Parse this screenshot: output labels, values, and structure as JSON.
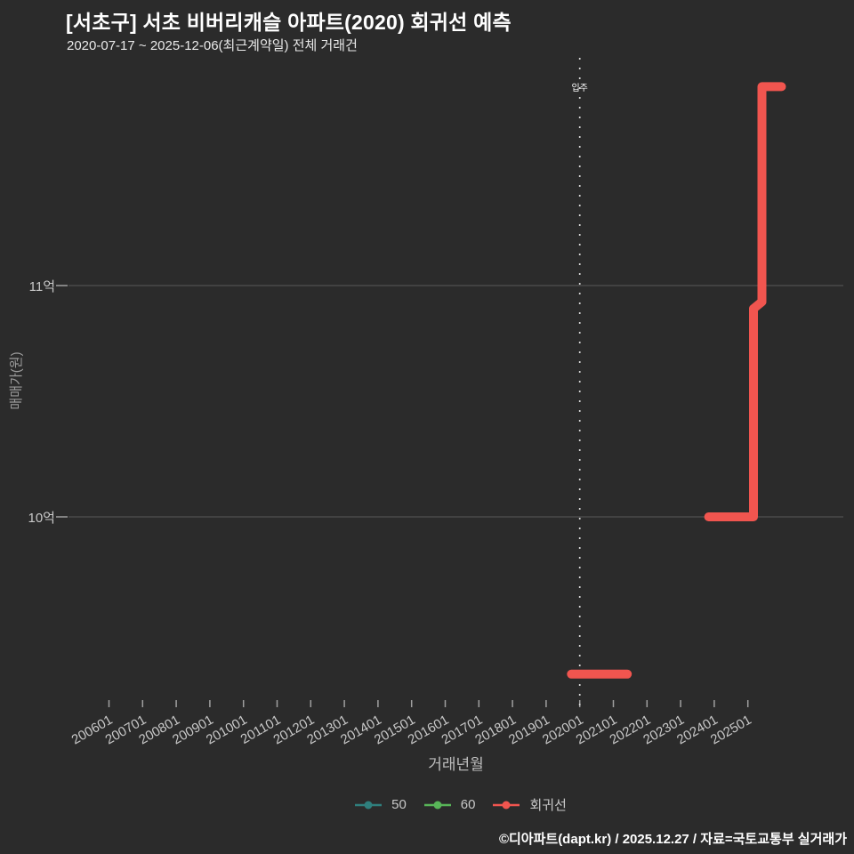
{
  "header": {
    "title": "[서초구] 서초 비버리캐슬 아파트(2020) 회귀선 예측",
    "subtitle": "2020-07-17 ~ 2025-12-06(최근계약일) 전체 거래건"
  },
  "footer": {
    "credit": "©디아파트(dapt.kr) / 2025.12.27 / 자료=국토교통부 실거래가"
  },
  "colors": {
    "background": "#2b2b2b",
    "grid": "#505050",
    "tick": "#a0a0a0",
    "tick_label": "#c8c8c8",
    "axis_title": "#9d9d9d",
    "annotation_line": "#d8d8d8",
    "annotation_text": "#ffffff",
    "series_50": "#2f7f7d",
    "series_60": "#58b558",
    "regression": "#f1554f"
  },
  "chart_data": {
    "type": "line",
    "title": "[서초구] 서초 비버리캐슬 아파트(2020) 회귀선 예측",
    "subtitle": "2020-07-17 ~ 2025-12-06(최근계약일) 전체 거래건",
    "xlabel": "거래년월",
    "ylabel": "매매가(원)",
    "grid": "horizontal-only",
    "legend_position": "bottom-center",
    "x_tick_labels": [
      "200601",
      "200701",
      "200801",
      "200901",
      "201001",
      "201101",
      "201201",
      "201301",
      "201401",
      "201501",
      "201601",
      "201701",
      "201801",
      "201901",
      "202001",
      "202101",
      "202201",
      "202301",
      "202401",
      "202501"
    ],
    "x_tick_rotation_deg": -30,
    "y_ticks": [
      {
        "label": "11억",
        "value": 11.0
      },
      {
        "label": "10억",
        "value": 10.0
      }
    ],
    "y_unit": "억원",
    "ylim_approx": [
      9.15,
      11.95
    ],
    "annotation": {
      "label": "입주",
      "x": "202001",
      "style": "dotted-vertical-line"
    },
    "legend": [
      {
        "name": "50",
        "color": "#2f7f7d"
      },
      {
        "name": "60",
        "color": "#58b558"
      },
      {
        "name": "회귀선",
        "color": "#f1554f"
      }
    ],
    "series": [
      {
        "name": "50",
        "color": "#2f7f7d",
        "segments": []
      },
      {
        "name": "60",
        "color": "#58b558",
        "segments": []
      },
      {
        "name": "회귀선",
        "color": "#f1554f",
        "segments": [
          [
            [
              "201910",
              9.32
            ],
            [
              "202106",
              9.32
            ]
          ],
          [
            [
              "202311",
              10.0
            ],
            [
              "202503",
              10.0
            ],
            [
              "202503",
              10.9
            ],
            [
              "202506",
              10.93
            ],
            [
              "202506",
              11.86
            ],
            [
              "202601",
              11.86
            ]
          ]
        ]
      }
    ]
  }
}
